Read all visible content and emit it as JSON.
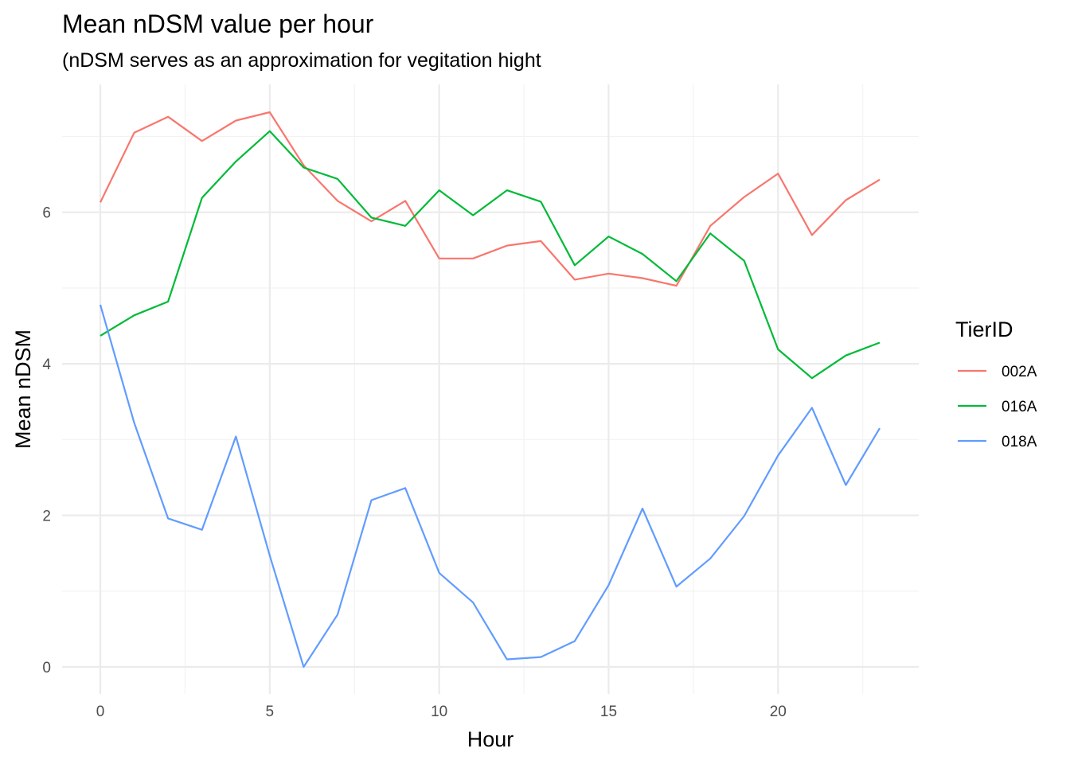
{
  "chart_data": {
    "type": "line",
    "title": "Mean nDSM value per hour",
    "subtitle": "(nDSM serves as an approximation for vegitation hight",
    "xlabel": "Hour",
    "ylabel": "Mean nDSM",
    "xlim": [
      0,
      23
    ],
    "ylim": [
      0,
      7.32
    ],
    "x_ticks": [
      0,
      5,
      10,
      15,
      20
    ],
    "y_ticks": [
      0,
      2,
      4,
      6
    ],
    "grid": true,
    "legend": {
      "title": "TierID",
      "position": "right"
    },
    "x": [
      0,
      1,
      2,
      3,
      4,
      5,
      6,
      7,
      8,
      9,
      10,
      11,
      12,
      13,
      14,
      15,
      16,
      17,
      18,
      19,
      20,
      21,
      22,
      23
    ],
    "series": [
      {
        "name": "002A",
        "color": "#F8766D",
        "values": [
          6.13,
          7.05,
          7.26,
          6.94,
          7.21,
          7.32,
          6.62,
          6.15,
          5.88,
          6.15,
          5.39,
          5.39,
          5.56,
          5.62,
          5.11,
          5.19,
          5.13,
          5.03,
          5.82,
          6.2,
          6.51,
          5.7,
          6.16,
          6.43
        ]
      },
      {
        "name": "016A",
        "color": "#00BA38",
        "values": [
          4.37,
          4.64,
          4.82,
          6.19,
          6.67,
          7.07,
          6.59,
          6.44,
          5.93,
          5.82,
          6.29,
          5.96,
          6.29,
          6.14,
          5.3,
          5.68,
          5.45,
          5.09,
          5.72,
          5.36,
          4.19,
          3.81,
          4.11,
          4.28
        ]
      },
      {
        "name": "018A",
        "color": "#619CFF",
        "values": [
          4.78,
          3.22,
          1.96,
          1.81,
          3.04,
          1.47,
          0.0,
          0.69,
          2.2,
          2.36,
          1.24,
          0.85,
          0.1,
          0.13,
          0.34,
          1.08,
          2.09,
          1.06,
          1.43,
          1.99,
          2.79,
          3.42,
          2.4,
          3.15
        ]
      }
    ]
  }
}
